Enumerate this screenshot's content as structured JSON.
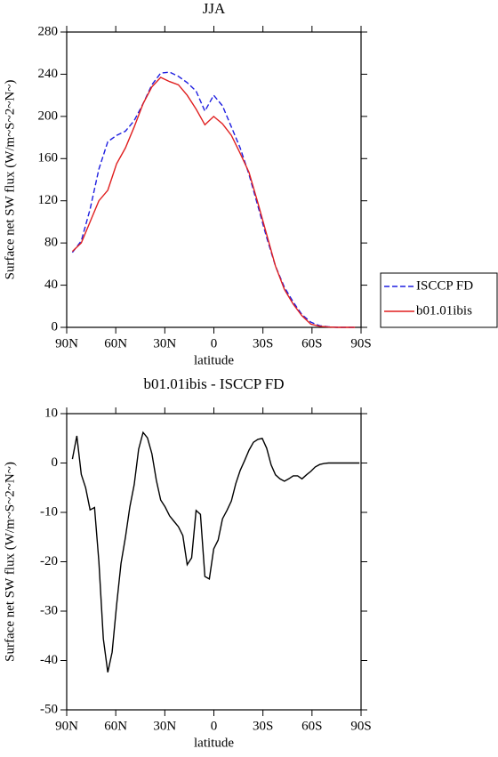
{
  "chart_data": [
    {
      "type": "line",
      "title": "JJA",
      "xlabel": "latitude",
      "ylabel": "Surface net SW flux (W/m~S~2~N~)",
      "x": [
        86.5,
        81.1,
        75.7,
        70.3,
        64.9,
        59.5,
        54.1,
        48.7,
        43.3,
        37.9,
        32.5,
        27.1,
        21.7,
        16.3,
        10.9,
        5.5,
        0.1,
        -5.3,
        -10.7,
        -16.1,
        -21.5,
        -26.9,
        -32.3,
        -37.7,
        -43.1,
        -48.5,
        -53.9,
        -59.3,
        -64.7,
        -70.1,
        -75.5,
        -80.9,
        -86.3
      ],
      "series": [
        {
          "name": "ISCCP FD",
          "color": "#1f1fe0",
          "style": "dashed",
          "values": [
            71,
            82,
            112,
            150,
            176,
            182,
            186,
            196,
            212,
            230,
            241,
            242,
            238,
            232,
            224,
            205,
            220,
            210,
            190,
            170,
            145,
            115,
            85,
            58,
            38,
            24,
            12,
            5,
            1.5,
            0.5,
            0,
            0,
            0
          ]
        },
        {
          "name": "b01.01ibis",
          "color": "#e01f1f",
          "style": "solid",
          "values": [
            72,
            80,
            100,
            120,
            130,
            155,
            170,
            190,
            212,
            228,
            237,
            233,
            230,
            220,
            207,
            192,
            200,
            193,
            182,
            165,
            147,
            118,
            88,
            58,
            36,
            22,
            11,
            3,
            1,
            0.3,
            0,
            0,
            0
          ]
        }
      ],
      "xlim": [
        90,
        -90
      ],
      "xticks": [
        {
          "value": 90,
          "label": "90N"
        },
        {
          "value": 60,
          "label": "60N"
        },
        {
          "value": 30,
          "label": "30N"
        },
        0,
        {
          "value": -30,
          "label": "30S"
        },
        {
          "value": -60,
          "label": "60S"
        },
        {
          "value": -90,
          "label": "90S"
        }
      ],
      "ylim": [
        0,
        280
      ],
      "yticks": [
        0,
        40,
        80,
        120,
        160,
        200,
        240,
        280
      ],
      "legend": "right"
    },
    {
      "type": "line",
      "title": "b01.01ibis - ISCCP FD",
      "xlabel": "latitude",
      "ylabel": "Surface net SW flux (W/m~S~2~N~)",
      "x": [
        86.5,
        83.8,
        81.1,
        78.4,
        75.7,
        73,
        70.3,
        67.6,
        64.9,
        62.2,
        59.5,
        56.8,
        54.1,
        51.4,
        48.7,
        46,
        43.3,
        40.6,
        37.9,
        35.2,
        32.5,
        29.8,
        27.1,
        24.4,
        21.7,
        19,
        16.3,
        13.6,
        10.9,
        8.2,
        5.5,
        2.8,
        0.1,
        -2.6,
        -5.3,
        -8,
        -10.7,
        -13.4,
        -16.1,
        -18.8,
        -21.5,
        -24.2,
        -26.9,
        -29.6,
        -32.3,
        -35,
        -37.7,
        -40.4,
        -43.1,
        -45.8,
        -48.5,
        -51.2,
        -53.9,
        -56.6,
        -59.3,
        -62,
        -64.7,
        -67.4,
        -70.1,
        -72.8,
        -75.5,
        -78.2,
        -80.9,
        -83.6,
        -86.3,
        -89
      ],
      "values": [
        0.8,
        5.5,
        -2.3,
        -5,
        -9.5,
        -9,
        -20,
        -35.6,
        -42.4,
        -38.3,
        -28.8,
        -20.3,
        -15.1,
        -8.9,
        -4.4,
        2.8,
        6.2,
        5.1,
        1.9,
        -3.5,
        -7.5,
        -8.9,
        -10.7,
        -11.8,
        -12.9,
        -14.7,
        -20.6,
        -19.2,
        -9.6,
        -10.4,
        -23,
        -23.5,
        -17.4,
        -15.6,
        -11.3,
        -9.6,
        -7.7,
        -4.2,
        -1.5,
        0.5,
        2.6,
        4.2,
        4.8,
        5,
        3,
        -0.4,
        -2.4,
        -3.2,
        -3.7,
        -3.2,
        -2.6,
        -2.6,
        -3.2,
        -2.4,
        -1.7,
        -0.8,
        -0.3,
        -0.1,
        0,
        0,
        0,
        0,
        0,
        0,
        0,
        0
      ],
      "color": "#000000",
      "xlim": [
        90,
        -90
      ],
      "xticks": [
        {
          "value": 90,
          "label": "90N"
        },
        {
          "value": 60,
          "label": "60N"
        },
        {
          "value": 30,
          "label": "30N"
        },
        0,
        {
          "value": -30,
          "label": "30S"
        },
        {
          "value": -60,
          "label": "60S"
        },
        {
          "value": -90,
          "label": "90S"
        }
      ],
      "ylim": [
        -50,
        10
      ],
      "yticks": [
        -50,
        -40,
        -30,
        -20,
        -10,
        0,
        10
      ]
    }
  ]
}
